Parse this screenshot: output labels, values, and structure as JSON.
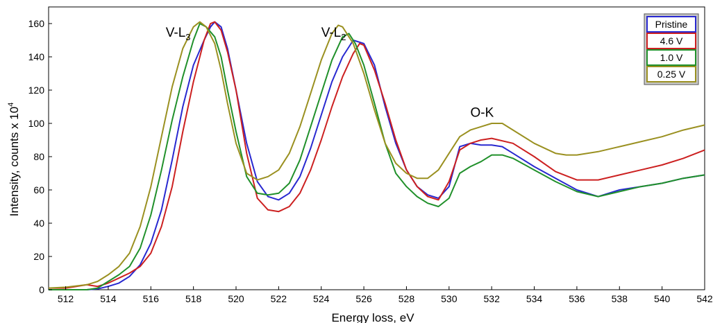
{
  "chart_data": {
    "type": "line",
    "title": "",
    "xlabel": "Energy loss, eV",
    "ylabel": "Intensity, counts x 10",
    "ylabel_sup": "4",
    "xlim": [
      511.2,
      542
    ],
    "ylim": [
      0,
      170
    ],
    "xticks": [
      512,
      514,
      516,
      518,
      520,
      522,
      524,
      526,
      528,
      530,
      532,
      534,
      536,
      538,
      540,
      542
    ],
    "yticks": [
      0,
      20,
      40,
      60,
      80,
      100,
      120,
      140,
      160
    ],
    "grid": false,
    "legend_position": "top-right",
    "annotations": [
      {
        "base": "V-L",
        "sub": "3",
        "x": 516.7,
        "y": 152
      },
      {
        "base": "V-L",
        "sub": "2",
        "x": 524.0,
        "y": 152
      },
      {
        "base": "O-K",
        "sub": "",
        "x": 531.0,
        "y": 104
      }
    ],
    "series": [
      {
        "name": "Pristine",
        "color": "#2828d0",
        "points": [
          [
            511.2,
            0
          ],
          [
            512,
            0
          ],
          [
            513,
            0
          ],
          [
            513.5,
            0.5
          ],
          [
            514,
            2
          ],
          [
            514.5,
            4
          ],
          [
            515,
            8
          ],
          [
            515.5,
            15
          ],
          [
            516,
            28
          ],
          [
            516.5,
            48
          ],
          [
            517,
            78
          ],
          [
            517.5,
            110
          ],
          [
            518,
            135
          ],
          [
            518.5,
            150
          ],
          [
            518.8,
            158
          ],
          [
            519,
            161
          ],
          [
            519.3,
            158
          ],
          [
            519.6,
            145
          ],
          [
            520,
            120
          ],
          [
            520.5,
            88
          ],
          [
            521,
            65
          ],
          [
            521.5,
            56
          ],
          [
            522,
            54
          ],
          [
            522.5,
            58
          ],
          [
            523,
            68
          ],
          [
            523.5,
            85
          ],
          [
            524,
            105
          ],
          [
            524.5,
            125
          ],
          [
            525,
            140
          ],
          [
            525.5,
            150
          ],
          [
            526,
            148
          ],
          [
            526.5,
            135
          ],
          [
            527,
            110
          ],
          [
            527.5,
            88
          ],
          [
            528,
            72
          ],
          [
            528.5,
            62
          ],
          [
            529,
            57
          ],
          [
            529.5,
            55
          ],
          [
            530,
            62
          ],
          [
            530.5,
            86
          ],
          [
            531,
            88
          ],
          [
            531.5,
            87
          ],
          [
            532,
            87
          ],
          [
            532.5,
            86
          ],
          [
            533,
            82
          ],
          [
            534,
            74
          ],
          [
            535,
            67
          ],
          [
            536,
            60
          ],
          [
            537,
            56
          ],
          [
            538,
            60
          ],
          [
            539,
            62
          ],
          [
            540,
            64
          ],
          [
            541,
            67
          ],
          [
            542,
            69
          ]
        ]
      },
      {
        "name": "4.6 V",
        "color": "#cc2020",
        "points": [
          [
            511.2,
            1
          ],
          [
            512,
            1
          ],
          [
            512.5,
            2
          ],
          [
            513,
            3
          ],
          [
            513.5,
            2
          ],
          [
            514,
            4
          ],
          [
            514.5,
            7
          ],
          [
            515,
            10
          ],
          [
            515.5,
            14
          ],
          [
            516,
            22
          ],
          [
            516.5,
            38
          ],
          [
            517,
            62
          ],
          [
            517.5,
            95
          ],
          [
            518,
            125
          ],
          [
            518.5,
            150
          ],
          [
            518.8,
            160
          ],
          [
            519,
            161
          ],
          [
            519.3,
            156
          ],
          [
            519.6,
            143
          ],
          [
            520,
            120
          ],
          [
            520.5,
            82
          ],
          [
            521,
            55
          ],
          [
            521.5,
            48
          ],
          [
            522,
            47
          ],
          [
            522.5,
            50
          ],
          [
            523,
            58
          ],
          [
            523.5,
            72
          ],
          [
            524,
            90
          ],
          [
            524.5,
            110
          ],
          [
            525,
            128
          ],
          [
            525.5,
            142
          ],
          [
            525.8,
            148
          ],
          [
            526,
            147
          ],
          [
            526.5,
            132
          ],
          [
            527,
            112
          ],
          [
            527.5,
            90
          ],
          [
            528,
            72
          ],
          [
            528.5,
            62
          ],
          [
            529,
            56
          ],
          [
            529.5,
            54
          ],
          [
            530,
            65
          ],
          [
            530.5,
            84
          ],
          [
            531,
            88
          ],
          [
            531.5,
            90
          ],
          [
            532,
            91
          ],
          [
            533,
            88
          ],
          [
            534,
            80
          ],
          [
            535,
            71
          ],
          [
            536,
            66
          ],
          [
            537,
            66
          ],
          [
            538,
            69
          ],
          [
            539,
            72
          ],
          [
            540,
            75
          ],
          [
            541,
            79
          ],
          [
            542,
            84
          ]
        ]
      },
      {
        "name": "1.0 V",
        "color": "#20902a",
        "points": [
          [
            511.2,
            0
          ],
          [
            512,
            0
          ],
          [
            513,
            0
          ],
          [
            513.5,
            1
          ],
          [
            514,
            5
          ],
          [
            514.5,
            9
          ],
          [
            515,
            14
          ],
          [
            515.5,
            25
          ],
          [
            516,
            45
          ],
          [
            516.5,
            72
          ],
          [
            517,
            102
          ],
          [
            517.5,
            128
          ],
          [
            518,
            150
          ],
          [
            518.3,
            160
          ],
          [
            518.6,
            158
          ],
          [
            519,
            152
          ],
          [
            519.3,
            140
          ],
          [
            519.6,
            120
          ],
          [
            520,
            95
          ],
          [
            520.5,
            68
          ],
          [
            521,
            58
          ],
          [
            521.5,
            57
          ],
          [
            522,
            58
          ],
          [
            522.5,
            64
          ],
          [
            523,
            78
          ],
          [
            523.5,
            98
          ],
          [
            524,
            118
          ],
          [
            524.5,
            138
          ],
          [
            525,
            152
          ],
          [
            525.3,
            154
          ],
          [
            525.6,
            148
          ],
          [
            526,
            135
          ],
          [
            526.5,
            112
          ],
          [
            527,
            88
          ],
          [
            527.5,
            70
          ],
          [
            528,
            62
          ],
          [
            528.5,
            56
          ],
          [
            529,
            52
          ],
          [
            529.5,
            50
          ],
          [
            530,
            55
          ],
          [
            530.5,
            70
          ],
          [
            531,
            74
          ],
          [
            531.5,
            77
          ],
          [
            532,
            81
          ],
          [
            532.5,
            81
          ],
          [
            533,
            79
          ],
          [
            534,
            72
          ],
          [
            535,
            65
          ],
          [
            536,
            59
          ],
          [
            537,
            56
          ],
          [
            538,
            59
          ],
          [
            539,
            62
          ],
          [
            540,
            64
          ],
          [
            541,
            67
          ],
          [
            542,
            69
          ]
        ]
      },
      {
        "name": "0.25 V",
        "color": "#9a9020",
        "points": [
          [
            511.2,
            1
          ],
          [
            512,
            1.5
          ],
          [
            513,
            3
          ],
          [
            513.5,
            5
          ],
          [
            514,
            9
          ],
          [
            514.5,
            14
          ],
          [
            515,
            22
          ],
          [
            515.5,
            38
          ],
          [
            516,
            62
          ],
          [
            516.5,
            92
          ],
          [
            517,
            122
          ],
          [
            517.5,
            145
          ],
          [
            518,
            158
          ],
          [
            518.3,
            161
          ],
          [
            518.6,
            158
          ],
          [
            519,
            148
          ],
          [
            519.3,
            132
          ],
          [
            519.6,
            112
          ],
          [
            520,
            88
          ],
          [
            520.5,
            70
          ],
          [
            521,
            66
          ],
          [
            521.5,
            68
          ],
          [
            522,
            72
          ],
          [
            522.5,
            82
          ],
          [
            523,
            98
          ],
          [
            523.5,
            118
          ],
          [
            524,
            138
          ],
          [
            524.5,
            154
          ],
          [
            524.8,
            159
          ],
          [
            525,
            158
          ],
          [
            525.5,
            148
          ],
          [
            526,
            130
          ],
          [
            526.5,
            108
          ],
          [
            527,
            88
          ],
          [
            527.5,
            76
          ],
          [
            528,
            70
          ],
          [
            528.5,
            67
          ],
          [
            529,
            67
          ],
          [
            529.5,
            72
          ],
          [
            530,
            82
          ],
          [
            530.5,
            92
          ],
          [
            531,
            96
          ],
          [
            531.5,
            98
          ],
          [
            532,
            100
          ],
          [
            532.5,
            100
          ],
          [
            533,
            96
          ],
          [
            534,
            88
          ],
          [
            535,
            82
          ],
          [
            535.5,
            81
          ],
          [
            536,
            81
          ],
          [
            537,
            83
          ],
          [
            538,
            86
          ],
          [
            539,
            89
          ],
          [
            540,
            92
          ],
          [
            541,
            96
          ],
          [
            542,
            99
          ]
        ]
      }
    ]
  }
}
